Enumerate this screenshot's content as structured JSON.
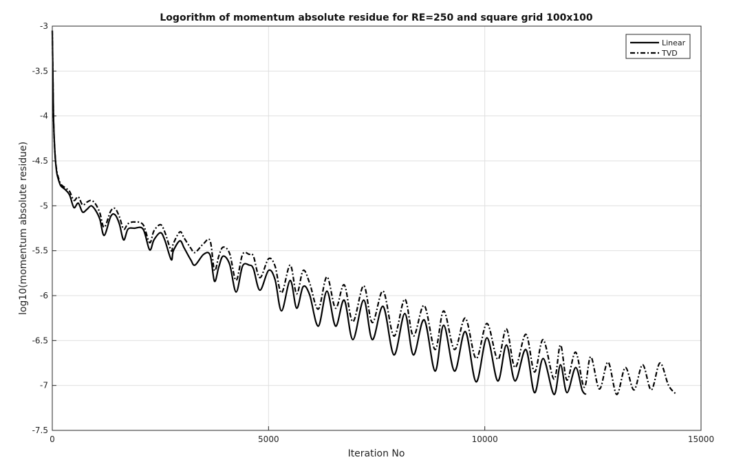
{
  "chart_data": {
    "type": "line",
    "title": "Logorithm of momentum absolute residue for RE=250 and square grid 100x100",
    "xlabel": "Iteration No",
    "ylabel": "log10(momentum absolute residue)",
    "xlim": [
      0,
      15000
    ],
    "ylim": [
      -7.5,
      -3
    ],
    "xticks": [
      "0",
      "5000",
      "10000",
      "15000"
    ],
    "yticks": [
      "-3",
      "-3.5",
      "-4",
      "-4.5",
      "-5",
      "-5.5",
      "-6",
      "-6.5",
      "-7",
      "-7.5"
    ],
    "grid": true,
    "legend": "top-right",
    "series": [
      {
        "name": "Linear",
        "style": "solid",
        "x": [
          0,
          10,
          30,
          60,
          100,
          150,
          200,
          300,
          400,
          500,
          600,
          700,
          800,
          900,
          1000,
          1100,
          1200,
          1350,
          1450,
          1550,
          1650,
          1750,
          1900,
          2100,
          2250,
          2350,
          2500,
          2600,
          2750,
          2800,
          2950,
          3050,
          3200,
          3300,
          3500,
          3650,
          3750,
          3850,
          3950,
          4100,
          4250,
          4400,
          4550,
          4650,
          4800,
          5000,
          5150,
          5300,
          5500,
          5650,
          5800,
          5950,
          6150,
          6350,
          6550,
          6750,
          6950,
          7200,
          7400,
          7650,
          7900,
          8150,
          8350,
          8600,
          8850,
          9050,
          9300,
          9550,
          9800,
          10050,
          10300,
          10500,
          10700,
          10950,
          11150,
          11350,
          11600,
          11750,
          11900,
          12100,
          12250,
          12340
        ],
        "y": [
          -3.05,
          -3.4,
          -4.05,
          -4.4,
          -4.62,
          -4.72,
          -4.78,
          -4.82,
          -4.88,
          -5.02,
          -4.97,
          -5.07,
          -5.04,
          -5.0,
          -5.05,
          -5.15,
          -5.33,
          -5.12,
          -5.1,
          -5.2,
          -5.38,
          -5.26,
          -5.25,
          -5.26,
          -5.49,
          -5.38,
          -5.3,
          -5.38,
          -5.6,
          -5.5,
          -5.39,
          -5.47,
          -5.6,
          -5.66,
          -5.54,
          -5.55,
          -5.84,
          -5.68,
          -5.56,
          -5.65,
          -5.96,
          -5.67,
          -5.66,
          -5.7,
          -5.94,
          -5.72,
          -5.82,
          -6.17,
          -5.83,
          -6.14,
          -5.9,
          -5.99,
          -6.34,
          -5.95,
          -6.34,
          -6.05,
          -6.49,
          -6.05,
          -6.49,
          -6.12,
          -6.66,
          -6.2,
          -6.66,
          -6.27,
          -6.84,
          -6.33,
          -6.84,
          -6.4,
          -6.96,
          -6.47,
          -6.95,
          -6.55,
          -6.95,
          -6.6,
          -7.08,
          -6.7,
          -7.1,
          -6.77,
          -7.08,
          -6.8,
          -7.05,
          -7.1
        ]
      },
      {
        "name": "TVD",
        "style": "dash-dot",
        "x": [
          0,
          10,
          30,
          60,
          100,
          150,
          200,
          300,
          400,
          500,
          600,
          700,
          800,
          900,
          1000,
          1100,
          1200,
          1350,
          1450,
          1550,
          1650,
          1750,
          1900,
          2100,
          2250,
          2350,
          2500,
          2600,
          2750,
          2800,
          2950,
          3050,
          3200,
          3300,
          3500,
          3650,
          3750,
          3850,
          3950,
          4100,
          4250,
          4400,
          4550,
          4650,
          4800,
          5000,
          5150,
          5300,
          5500,
          5650,
          5800,
          5950,
          6150,
          6350,
          6550,
          6750,
          6950,
          7200,
          7400,
          7650,
          7900,
          8150,
          8350,
          8600,
          8850,
          9050,
          9300,
          9550,
          9800,
          10050,
          10300,
          10500,
          10700,
          10950,
          11150,
          11350,
          11600,
          11750,
          11900,
          12100,
          12300,
          12450,
          12650,
          12850,
          13050,
          13250,
          13450,
          13650,
          13850,
          14050,
          14250,
          14430
        ],
        "y": [
          -3.05,
          -3.4,
          -4.05,
          -4.4,
          -4.6,
          -4.7,
          -4.76,
          -4.8,
          -4.84,
          -4.94,
          -4.9,
          -4.99,
          -4.96,
          -4.94,
          -4.98,
          -5.08,
          -5.24,
          -5.06,
          -5.03,
          -5.12,
          -5.26,
          -5.2,
          -5.18,
          -5.21,
          -5.41,
          -5.28,
          -5.21,
          -5.29,
          -5.5,
          -5.42,
          -5.29,
          -5.36,
          -5.47,
          -5.52,
          -5.42,
          -5.39,
          -5.72,
          -5.56,
          -5.46,
          -5.53,
          -5.83,
          -5.54,
          -5.54,
          -5.56,
          -5.8,
          -5.59,
          -5.67,
          -5.97,
          -5.66,
          -5.98,
          -5.72,
          -5.86,
          -6.15,
          -5.79,
          -6.14,
          -5.88,
          -6.29,
          -5.89,
          -6.3,
          -5.95,
          -6.45,
          -6.04,
          -6.45,
          -6.11,
          -6.6,
          -6.17,
          -6.6,
          -6.25,
          -6.7,
          -6.31,
          -6.71,
          -6.37,
          -6.8,
          -6.43,
          -6.85,
          -6.49,
          -6.93,
          -6.55,
          -6.94,
          -6.63,
          -7.02,
          -6.68,
          -7.04,
          -6.74,
          -7.1,
          -6.8,
          -7.05,
          -6.77,
          -7.05,
          -6.75,
          -7.0,
          -7.1
        ]
      }
    ]
  }
}
